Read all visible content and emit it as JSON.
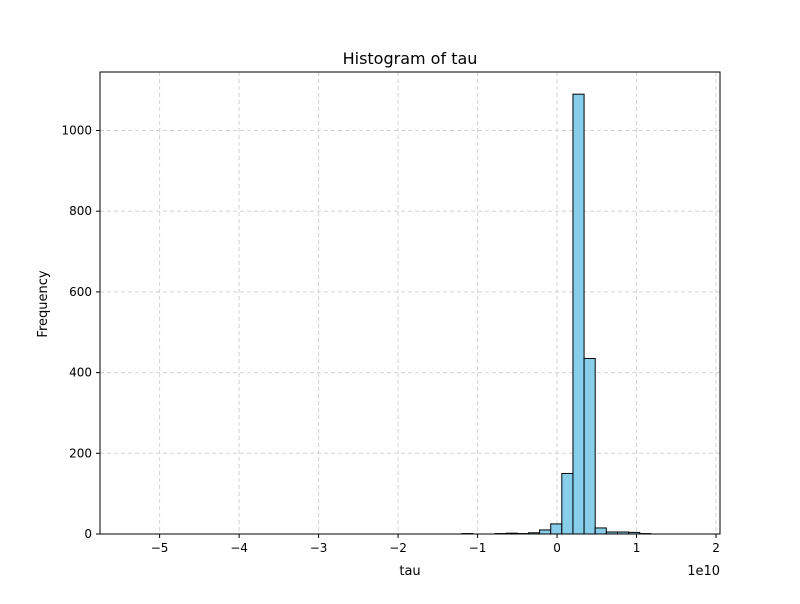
{
  "chart_data": {
    "type": "bar",
    "title": "Histogram of tau",
    "xlabel": "tau",
    "ylabel": "Frequency",
    "x_scale_label": "1e10",
    "xlim": [
      -57500000000.0,
      20500000000.0
    ],
    "ylim": [
      0,
      1145
    ],
    "grid": true,
    "bar_color": "#87ceeb",
    "edge_color": "#000000",
    "grid_color": "#d3d3d3",
    "x_ticks": [
      {
        "value": -50000000000.0,
        "label": "−5"
      },
      {
        "value": -40000000000.0,
        "label": "−4"
      },
      {
        "value": -30000000000.0,
        "label": "−3"
      },
      {
        "value": -20000000000.0,
        "label": "−2"
      },
      {
        "value": -10000000000.0,
        "label": "−1"
      },
      {
        "value": 0,
        "label": "0"
      },
      {
        "value": 10000000000.0,
        "label": "1"
      },
      {
        "value": 20000000000.0,
        "label": "2"
      }
    ],
    "y_ticks": [
      {
        "value": 0,
        "label": "0"
      },
      {
        "value": 200,
        "label": "200"
      },
      {
        "value": 400,
        "label": "400"
      },
      {
        "value": 600,
        "label": "600"
      },
      {
        "value": 800,
        "label": "800"
      },
      {
        "value": 1000,
        "label": "1000"
      }
    ],
    "bin_start": -54000000000.0,
    "bin_width": 1400000000.0,
    "counts": [
      0,
      0,
      0,
      0,
      0,
      0,
      0,
      0,
      0,
      0,
      0,
      0,
      0,
      0,
      0,
      0,
      0,
      0,
      0,
      0,
      0,
      0,
      0,
      0,
      0,
      0,
      0,
      0,
      0,
      0,
      1,
      0,
      0,
      1,
      2,
      1,
      3,
      10,
      25,
      150,
      1090,
      435,
      15,
      5,
      5,
      4,
      1,
      0,
      0,
      0
    ]
  }
}
